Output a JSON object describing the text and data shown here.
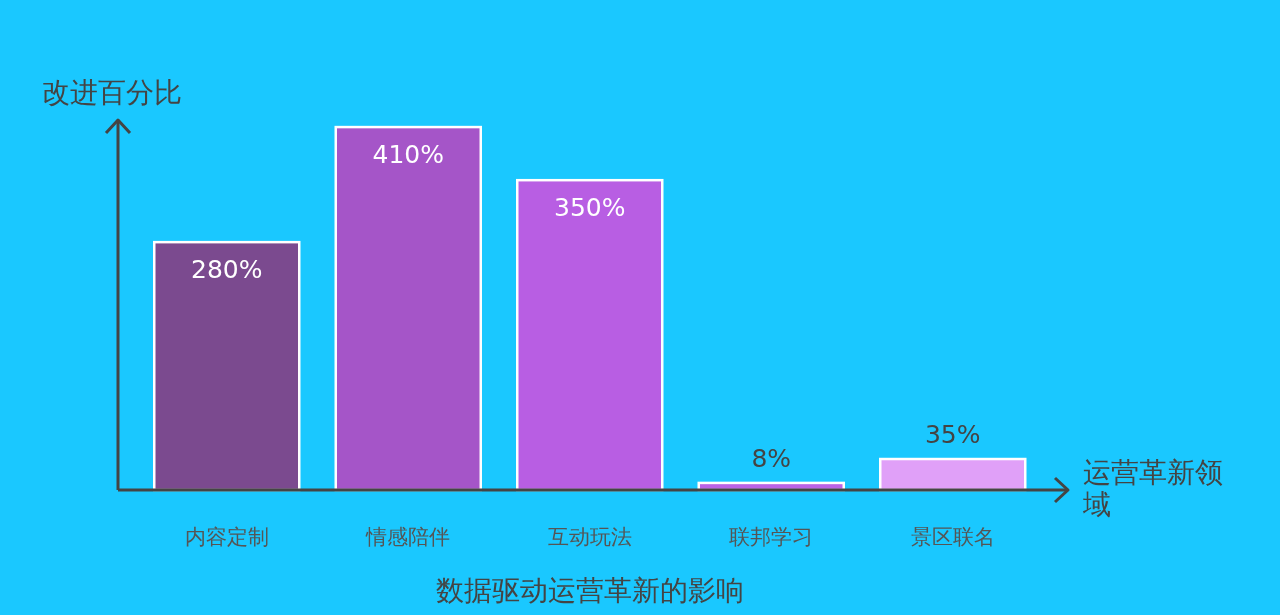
{
  "chart_data": {
    "type": "bar",
    "title": "数据驱动运营革新的影响",
    "xlabel": "运营革新领域",
    "ylabel": "改进百分比",
    "categories": [
      "内容定制",
      "情感陪伴",
      "互动玩法",
      "联邦学习",
      "景区联名"
    ],
    "values": [
      280,
      410,
      350,
      8,
      35
    ],
    "colors": [
      "#7b4a8f",
      "#a555c8",
      "#b85ee3",
      "#bb62e6",
      "#e0a0f8"
    ],
    "value_labels": [
      "280%",
      "410%",
      "350%",
      "8%",
      "35%"
    ],
    "ylim": [
      0,
      418
    ]
  }
}
